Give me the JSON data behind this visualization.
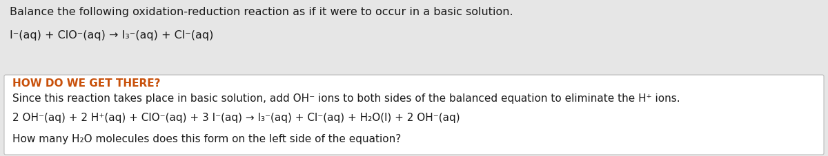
{
  "bg_color": "#e6e6e6",
  "box_bg_color": "#ffffff",
  "box_border_color": "#bbbbbb",
  "text_color": "#1a1a1a",
  "orange_color": "#c8500a",
  "font_size": 11.5,
  "line1": "Balance the following oxidation-reduction reaction as if it were to occur in a basic solution.",
  "line2": "I⁻(aq) + ClO⁻(aq) → I₃⁻(aq) + Cl⁻(aq)",
  "heading": "HOW DO WE GET THERE?",
  "line3": "Since this reaction takes place in basic solution, add OH⁻ ions to both sides of the balanced equation to eliminate the H⁺ ions.",
  "line4": "2 OH⁻(aq) + 2 H⁺(aq) + ClO⁻(aq) + 3 I⁻(aq) → I₃⁻(aq) + Cl⁻(aq) + H₂O(l) + 2 OH⁻(aq)",
  "line5": "How many H₂O molecules does this form on the left side of the equation?"
}
